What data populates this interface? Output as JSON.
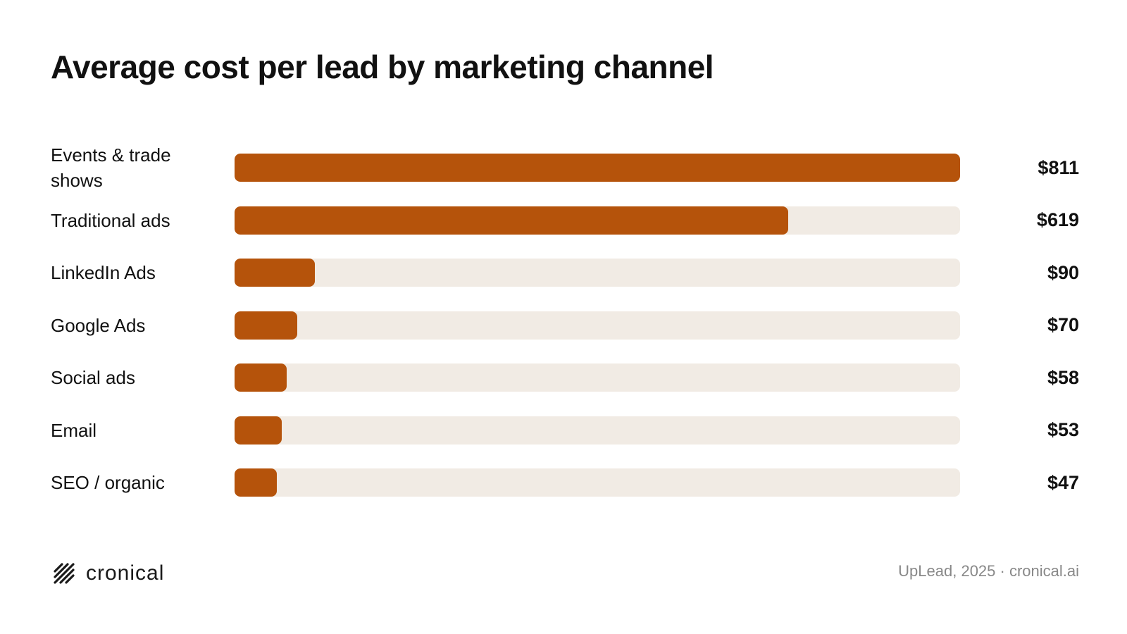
{
  "title": "Average cost per lead by marketing channel",
  "chart_data": {
    "type": "bar",
    "orientation": "horizontal",
    "title": "Average cost per lead by marketing channel",
    "categories": [
      "Events & trade shows",
      "Traditional ads",
      "LinkedIn Ads",
      "Google Ads",
      "Social ads",
      "Email",
      "SEO / organic"
    ],
    "values": [
      811,
      619,
      90,
      70,
      58,
      53,
      47
    ],
    "value_labels": [
      "$811",
      "$619",
      "$90",
      "$70",
      "$58",
      "$53",
      "$47"
    ],
    "xlim": [
      0,
      811
    ],
    "grid": false,
    "bar_color": "#b5530b",
    "track_color": "#f1ebe4"
  },
  "footer": {
    "logo_text": "cronical",
    "logo_icon": "hatched-slash-icon",
    "source": "UpLead, 2025 · cronical.ai"
  }
}
